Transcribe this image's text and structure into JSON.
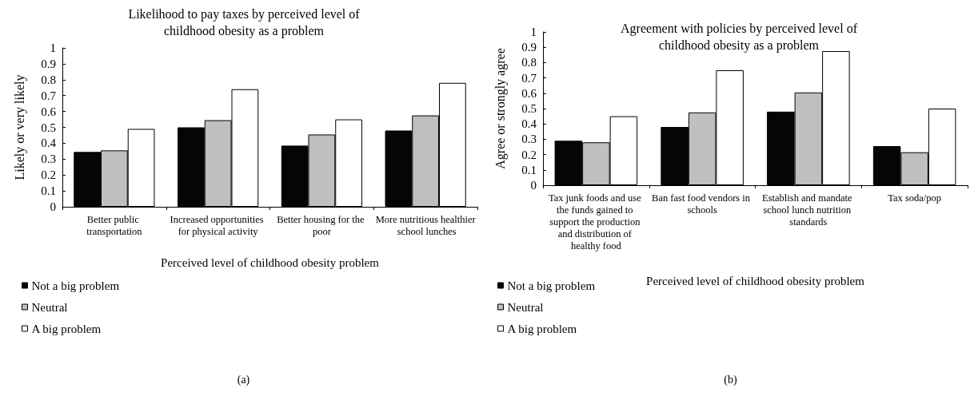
{
  "chart_data": [
    {
      "type": "bar",
      "title": "Likelihood to pay taxes by perceived level of\nchildhood obesity as a problem",
      "xlabel": "Perceived level of childhood obesity problem",
      "ylabel": "Likely or very likely",
      "categories": [
        "Better public transportation",
        "Increased opportunities for physical activity",
        "Better housing for the poor",
        "More nutritious healthier school lunches"
      ],
      "series": [
        {
          "name": "Not a big problem",
          "color": "#050505",
          "values": [
            0.345,
            0.5,
            0.385,
            0.48
          ]
        },
        {
          "name": "Neutral",
          "color": "#bfbfbf",
          "values": [
            0.355,
            0.545,
            0.455,
            0.575
          ]
        },
        {
          "name": "A big problem",
          "color": "#ffffff",
          "values": [
            0.49,
            0.74,
            0.55,
            0.78
          ]
        }
      ],
      "ylim": [
        0,
        1
      ],
      "yticks": [
        0,
        0.1,
        0.2,
        0.3,
        0.4,
        0.5,
        0.6,
        0.7,
        0.8,
        0.9,
        1
      ],
      "grid": false,
      "legend": "bottom left",
      "annotations": [
        "(a)"
      ]
    },
    {
      "type": "bar",
      "title": "Agreement with policies by perceived level of\nchildhood obesity as a problem",
      "xlabel": "Perceived level of childhood obesity problem",
      "ylabel": "Agree or strongly agree",
      "categories": [
        "Tax junk foods and use the funds gained to support the production and distribution of healthy food",
        "Ban fast food vendors in schools",
        "Establish and mandate school lunch nutrition standards",
        "Tax soda/pop"
      ],
      "series": [
        {
          "name": "Not a big problem",
          "color": "#050505",
          "values": [
            0.29,
            0.38,
            0.48,
            0.255
          ]
        },
        {
          "name": "Neutral",
          "color": "#bfbfbf",
          "values": [
            0.28,
            0.475,
            0.605,
            0.215
          ]
        },
        {
          "name": "A big problem",
          "color": "#ffffff",
          "values": [
            0.45,
            0.75,
            0.875,
            0.5
          ]
        }
      ],
      "ylim": [
        0,
        1
      ],
      "yticks": [
        0,
        0.1,
        0.2,
        0.3,
        0.4,
        0.5,
        0.6,
        0.7,
        0.8,
        0.9,
        1
      ],
      "grid": false,
      "legend": "bottom left",
      "annotations": [
        "(b)"
      ]
    }
  ]
}
